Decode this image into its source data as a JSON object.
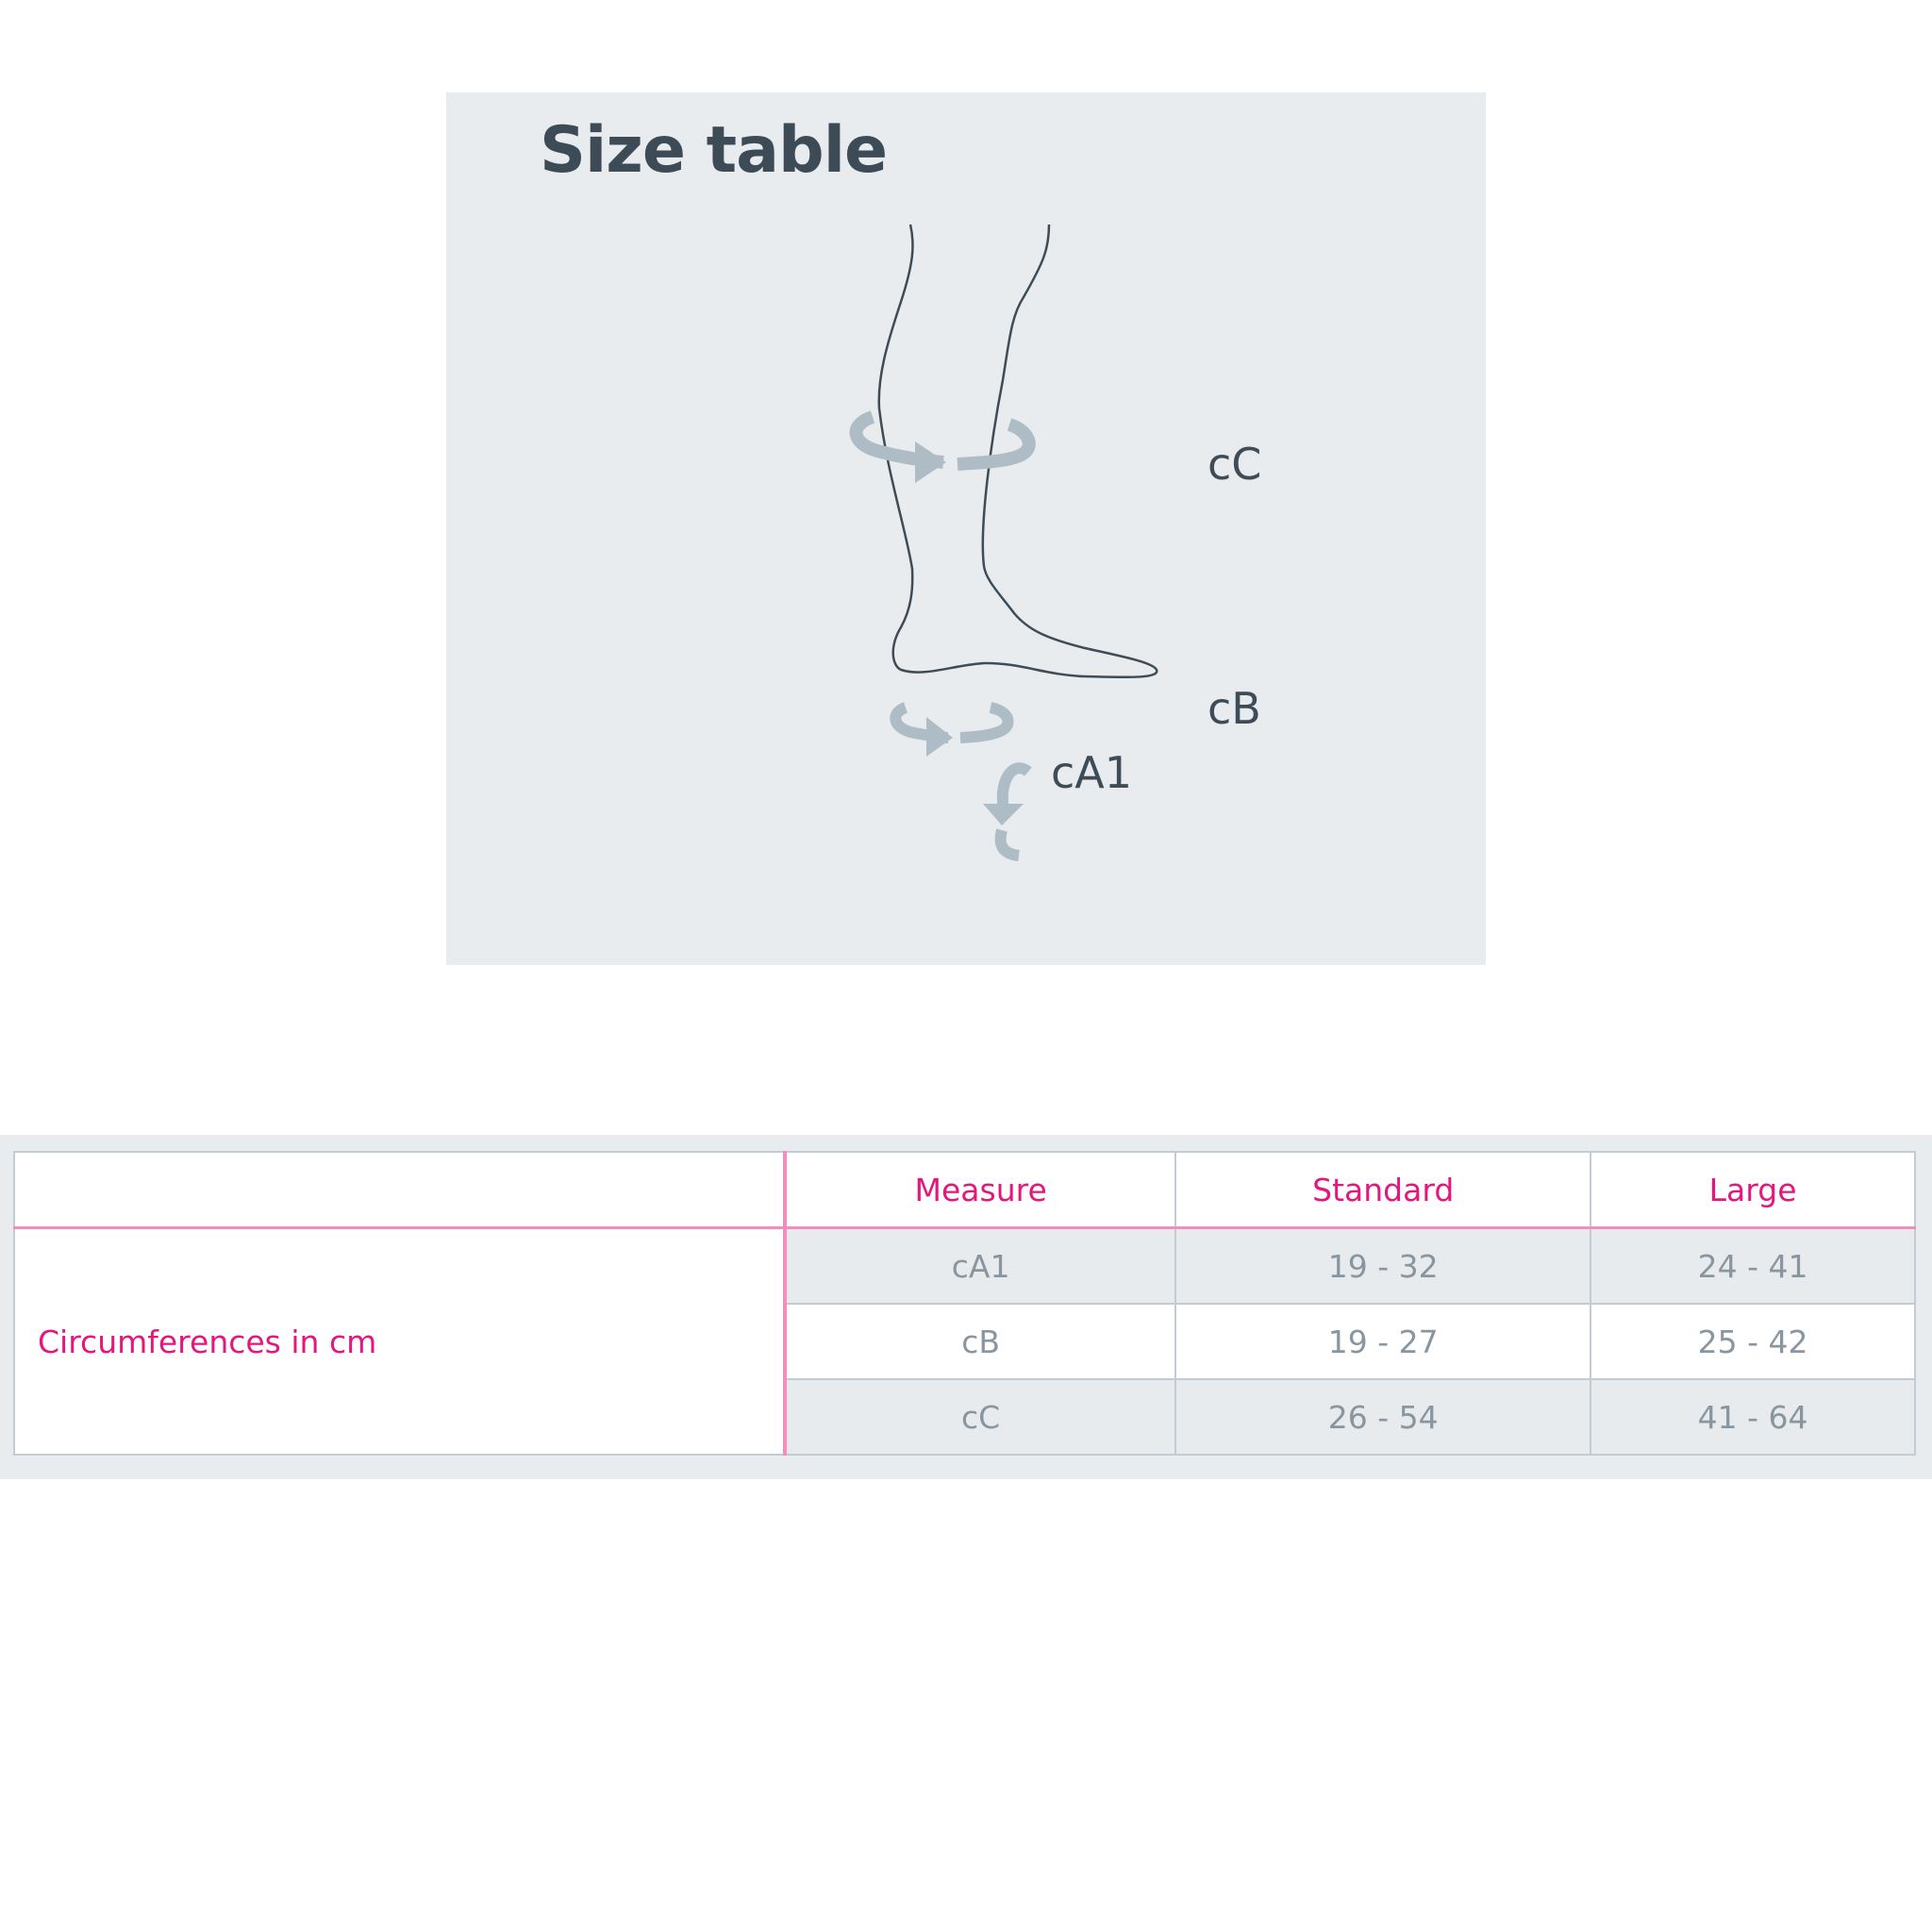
{
  "figure": {
    "title": "Size table",
    "labels": [
      "cC",
      "cB",
      "cA1"
    ],
    "arrow_color": "#aebcc6",
    "line_color": "#3e4c58"
  },
  "table": {
    "headers": [
      "",
      "Measure",
      "Standard",
      "Large"
    ],
    "row_group_label": "Circumferences in cm",
    "rows": [
      {
        "measure": "cA1",
        "standard": "19 - 32",
        "large": "24 - 41"
      },
      {
        "measure": "cB",
        "standard": "19 - 27",
        "large": "25 - 42"
      },
      {
        "measure": "cC",
        "standard": "26 - 54",
        "large": "41 - 64"
      }
    ],
    "accent_color": "#e3177d"
  }
}
